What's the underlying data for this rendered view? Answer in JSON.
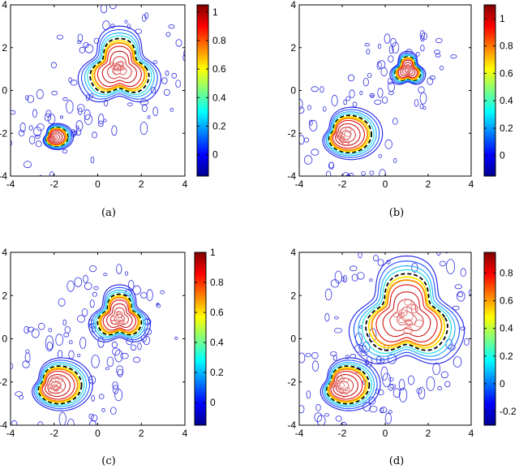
{
  "chart_data": [
    {
      "type": "contour",
      "caption": "(a)",
      "xlim": [
        -4,
        4
      ],
      "ylim": [
        -4,
        4
      ],
      "xticks": [
        -4,
        -2,
        0,
        2,
        4
      ],
      "yticks": [
        -4,
        -2,
        0,
        2,
        4
      ],
      "xtick_labels": [
        "-4",
        "-2",
        "0",
        "2",
        "4"
      ],
      "ytick_labels": [
        "-4",
        "-2",
        "0",
        "2",
        "4"
      ],
      "colorbar": {
        "range": [
          -0.15,
          1.05
        ],
        "ticks": [
          0,
          0.2,
          0.4,
          0.6,
          0.8,
          1
        ],
        "tick_labels": [
          "0",
          "0.2",
          "0.4",
          "0.6",
          "0.8",
          "1"
        ]
      },
      "regions": [
        {
          "shape": "triangle",
          "center": [
            1.0,
            1.0
          ],
          "size": 1.1
        },
        {
          "shape": "kidney",
          "center": [
            -2.0,
            -2.2
          ],
          "size": 0.5
        }
      ]
    },
    {
      "type": "contour",
      "caption": "(b)",
      "xlim": [
        -4,
        4
      ],
      "ylim": [
        -4,
        4
      ],
      "xticks": [
        -4,
        -2,
        0,
        2,
        4
      ],
      "yticks": [
        -4,
        -2,
        0,
        2,
        4
      ],
      "xtick_labels": [
        "-4",
        "-2",
        "0",
        "2",
        "4"
      ],
      "ytick_labels": [
        "-4",
        "-2",
        "0",
        "2",
        "4"
      ],
      "colorbar": {
        "range": [
          -0.15,
          1.1
        ],
        "ticks": [
          0,
          0.2,
          0.4,
          0.6,
          0.8,
          1
        ],
        "tick_labels": [
          "0",
          "0.2",
          "0.4",
          "0.6",
          "0.8",
          "1"
        ]
      },
      "regions": [
        {
          "shape": "triangle",
          "center": [
            1.05,
            0.95
          ],
          "size": 0.48
        },
        {
          "shape": "kidney",
          "center": [
            -1.9,
            -2.1
          ],
          "size": 1.0
        }
      ]
    },
    {
      "type": "contour",
      "caption": "(c)",
      "xlim": [
        -4,
        4
      ],
      "ylim": [
        -4,
        4
      ],
      "xticks": [
        -4,
        -2,
        0,
        2,
        4
      ],
      "yticks": [
        -4,
        -2,
        0,
        2,
        4
      ],
      "xtick_labels": [
        "-4",
        "-2",
        "0",
        "2",
        "4"
      ],
      "ytick_labels": [
        "-4",
        "-2",
        "0",
        "2",
        "4"
      ],
      "colorbar": {
        "range": [
          -0.15,
          1.0
        ],
        "ticks": [
          0,
          0.2,
          0.4,
          0.6,
          0.8,
          1
        ],
        "tick_labels": [
          "0",
          "0.2",
          "0.4",
          "0.6",
          "0.8",
          "1"
        ]
      },
      "regions": [
        {
          "shape": "triangle",
          "center": [
            1.0,
            1.0
          ],
          "size": 0.82
        },
        {
          "shape": "kidney",
          "center": [
            -2.0,
            -2.2
          ],
          "size": 1.0
        }
      ]
    },
    {
      "type": "contour",
      "caption": "(d)",
      "xlim": [
        -4,
        4
      ],
      "ylim": [
        -4,
        4
      ],
      "xticks": [
        -4,
        -2,
        0,
        2,
        4
      ],
      "yticks": [
        -4,
        -2,
        0,
        2,
        4
      ],
      "xtick_labels": [
        "-4",
        "-2",
        "0",
        "2",
        "4"
      ],
      "ytick_labels": [
        "-4",
        "-2",
        "0",
        "2",
        "4"
      ],
      "colorbar": {
        "range": [
          -0.3,
          0.95
        ],
        "ticks": [
          -0.2,
          0,
          0.2,
          0.4,
          0.6,
          0.8
        ],
        "tick_labels": [
          "-0.2",
          "0",
          "0.2",
          "0.4",
          "0.6",
          "0.8"
        ]
      },
      "regions": [
        {
          "shape": "triangle",
          "center": [
            1.0,
            1.0
          ],
          "size": 1.55
        },
        {
          "shape": "kidney",
          "center": [
            -2.0,
            -2.2
          ],
          "size": 1.0
        }
      ]
    }
  ]
}
